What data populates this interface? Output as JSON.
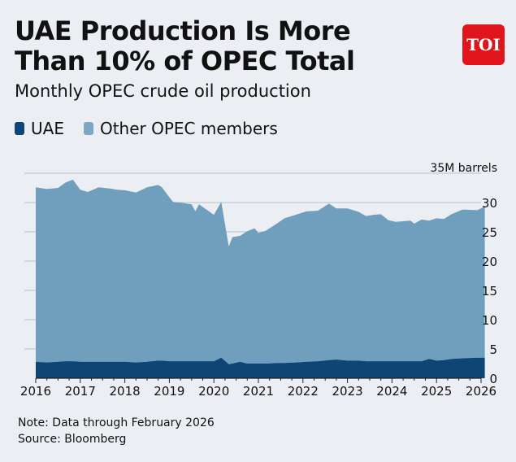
{
  "logo": {
    "text": "TOI",
    "color": "#e0141b"
  },
  "chart_data": {
    "type": "area",
    "stacked": true,
    "title": "UAE Production Is More Than 10% of OPEC Total",
    "subtitle": "Monthly OPEC crude oil production",
    "ylabel": "35M barrels",
    "ylim": [
      0,
      35
    ],
    "yticks": [
      "0",
      "5",
      "10",
      "15",
      "20",
      "25",
      "30"
    ],
    "xticks": [
      "2016",
      "2017",
      "2018",
      "2019",
      "2020",
      "2021",
      "2022",
      "2023",
      "2024",
      "2025",
      "2026"
    ],
    "xlim": [
      "2016-01",
      "2026-01"
    ],
    "grid": true,
    "legend_position": "top-left",
    "x": [
      "2016-01",
      "2016-04",
      "2016-07",
      "2016-09",
      "2016-11",
      "2017-01",
      "2017-03",
      "2017-06",
      "2017-09",
      "2017-11",
      "2018-01",
      "2018-04",
      "2018-07",
      "2018-10",
      "2018-11",
      "2019-01",
      "2019-02",
      "2019-05",
      "2019-07",
      "2019-08",
      "2019-09",
      "2020-01",
      "2020-03",
      "2020-05",
      "2020-06",
      "2020-08",
      "2020-10",
      "2020-12",
      "2021-01",
      "2021-03",
      "2021-06",
      "2021-08",
      "2021-11",
      "2022-02",
      "2022-05",
      "2022-08",
      "2022-10",
      "2023-01",
      "2023-04",
      "2023-06",
      "2023-08",
      "2023-10",
      "2023-12",
      "2024-02",
      "2024-06",
      "2024-07",
      "2024-09",
      "2024-11",
      "2025-01",
      "2025-03",
      "2025-05",
      "2025-08",
      "2025-12",
      "2026-02"
    ],
    "series": [
      {
        "name": "UAE",
        "color": "#0d4577",
        "values": [
          2.8,
          2.7,
          2.8,
          2.9,
          2.9,
          2.8,
          2.8,
          2.8,
          2.8,
          2.8,
          2.8,
          2.7,
          2.8,
          3.0,
          3.0,
          2.9,
          2.9,
          2.9,
          2.9,
          2.9,
          2.9,
          2.9,
          3.5,
          2.4,
          2.5,
          2.8,
          2.5,
          2.5,
          2.5,
          2.5,
          2.6,
          2.6,
          2.7,
          2.8,
          2.9,
          3.1,
          3.2,
          3.0,
          3.0,
          2.9,
          2.9,
          2.9,
          2.9,
          2.9,
          2.9,
          2.9,
          2.9,
          3.3,
          3.0,
          3.1,
          3.3,
          3.4,
          3.5,
          3.5
        ]
      },
      {
        "name": "Other OPEC members",
        "color": "#6f9fbd",
        "values": [
          29.8,
          29.6,
          29.7,
          30.5,
          31.0,
          29.4,
          29.0,
          29.8,
          29.6,
          29.4,
          29.3,
          29.0,
          29.8,
          30.0,
          29.6,
          28.0,
          27.2,
          27.0,
          26.8,
          25.6,
          26.8,
          25.0,
          26.6,
          20.1,
          21.6,
          21.5,
          22.6,
          23.1,
          22.3,
          22.7,
          23.8,
          24.7,
          25.2,
          25.7,
          25.7,
          26.7,
          25.8,
          26.0,
          25.4,
          24.8,
          25.0,
          25.1,
          24.1,
          23.8,
          24.0,
          23.5,
          24.2,
          23.6,
          24.3,
          24.1,
          24.7,
          25.4,
          25.2,
          25.8
        ]
      }
    ]
  },
  "footer": {
    "note": "Note: Data through February 2026",
    "source": "Source: Bloomberg"
  }
}
